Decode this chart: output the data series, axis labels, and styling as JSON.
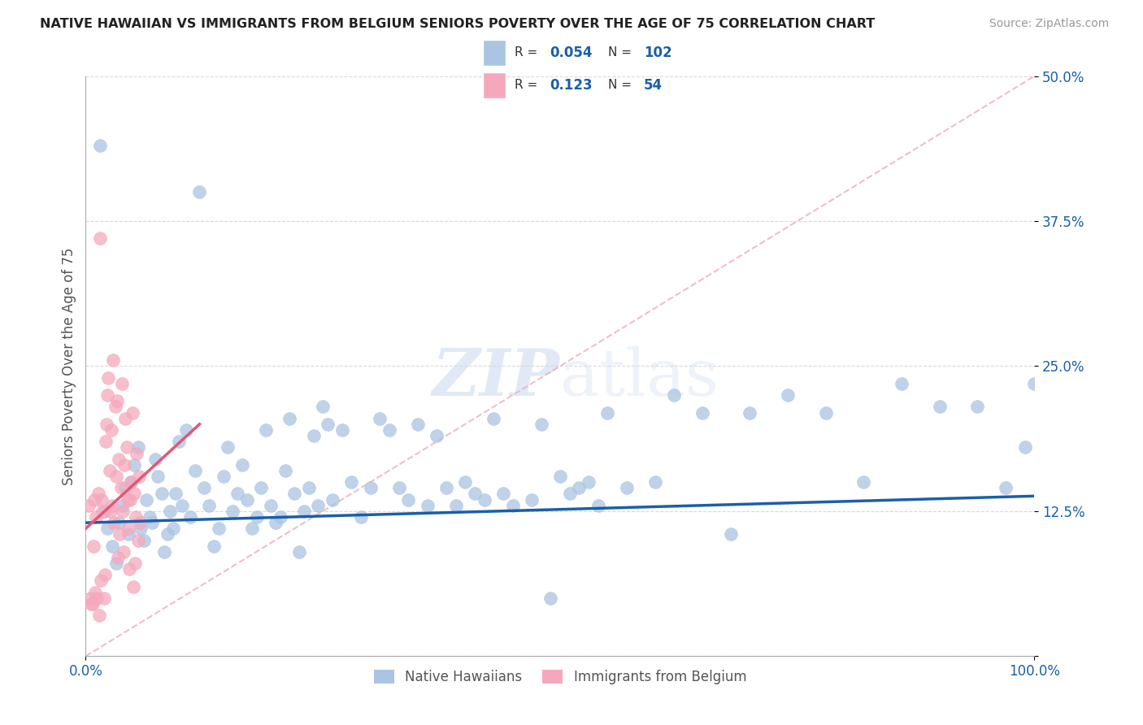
{
  "title": "NATIVE HAWAIIAN VS IMMIGRANTS FROM BELGIUM SENIORS POVERTY OVER THE AGE OF 75 CORRELATION CHART",
  "source": "Source: ZipAtlas.com",
  "ylabel": "Seniors Poverty Over the Age of 75",
  "legend_label1": "Native Hawaiians",
  "legend_label2": "Immigrants from Belgium",
  "r1": 0.054,
  "n1": 102,
  "r2": 0.123,
  "n2": 54,
  "color1": "#aac4e2",
  "color2": "#f5a8bc",
  "trendline1_color": "#1a5fa8",
  "trendline2_color": "#e05878",
  "ref_line_color": "#cccccc",
  "watermark": "ZIPatlas",
  "xlim": [
    0,
    100
  ],
  "ylim": [
    0,
    50
  ],
  "ytick_vals": [
    0,
    12.5,
    25.0,
    37.5,
    50.0
  ],
  "ytick_labels": [
    "",
    "12.5%",
    "25.0%",
    "37.5%",
    "50.0%"
  ],
  "xtick_vals": [
    0,
    100
  ],
  "xtick_labels": [
    "0.0%",
    "100.0%"
  ],
  "title_fontsize": 12,
  "axis_tick_fontsize": 12,
  "native_hawaiian_x": [
    1.5,
    2.0,
    2.3,
    2.8,
    3.2,
    3.5,
    3.9,
    4.2,
    4.5,
    4.8,
    5.1,
    5.5,
    5.8,
    6.1,
    6.4,
    6.7,
    7.0,
    7.3,
    7.6,
    8.0,
    8.3,
    8.6,
    8.9,
    9.2,
    9.5,
    9.8,
    10.2,
    10.6,
    11.0,
    11.5,
    12.0,
    12.5,
    13.0,
    13.5,
    14.0,
    14.5,
    15.0,
    15.5,
    16.0,
    16.5,
    17.0,
    17.5,
    18.0,
    18.5,
    19.0,
    19.5,
    20.0,
    20.5,
    21.0,
    21.5,
    22.0,
    22.5,
    23.0,
    23.5,
    24.0,
    24.5,
    25.0,
    25.5,
    26.0,
    27.0,
    28.0,
    29.0,
    30.0,
    31.0,
    32.0,
    33.0,
    34.0,
    35.0,
    36.0,
    37.0,
    38.0,
    39.0,
    40.0,
    41.0,
    42.0,
    43.0,
    44.0,
    45.0,
    47.0,
    48.0,
    49.0,
    50.0,
    51.0,
    52.0,
    53.0,
    54.0,
    55.0,
    57.0,
    60.0,
    62.0,
    65.0,
    68.0,
    70.0,
    74.0,
    78.0,
    82.0,
    86.0,
    90.0,
    94.0,
    97.0,
    99.0,
    100.0
  ],
  "native_hawaiian_y": [
    44.0,
    12.5,
    11.0,
    9.5,
    8.0,
    11.5,
    13.0,
    14.5,
    10.5,
    15.0,
    16.5,
    18.0,
    11.0,
    10.0,
    13.5,
    12.0,
    11.5,
    17.0,
    15.5,
    14.0,
    9.0,
    10.5,
    12.5,
    11.0,
    14.0,
    18.5,
    13.0,
    19.5,
    12.0,
    16.0,
    40.0,
    14.5,
    13.0,
    9.5,
    11.0,
    15.5,
    18.0,
    12.5,
    14.0,
    16.5,
    13.5,
    11.0,
    12.0,
    14.5,
    19.5,
    13.0,
    11.5,
    12.0,
    16.0,
    20.5,
    14.0,
    9.0,
    12.5,
    14.5,
    19.0,
    13.0,
    21.5,
    20.0,
    13.5,
    19.5,
    15.0,
    12.0,
    14.5,
    20.5,
    19.5,
    14.5,
    13.5,
    20.0,
    13.0,
    19.0,
    14.5,
    13.0,
    15.0,
    14.0,
    13.5,
    20.5,
    14.0,
    13.0,
    13.5,
    20.0,
    5.0,
    15.5,
    14.0,
    14.5,
    15.0,
    13.0,
    21.0,
    14.5,
    15.0,
    22.5,
    21.0,
    10.5,
    21.0,
    22.5,
    21.0,
    15.0,
    23.5,
    21.5,
    21.5,
    14.5,
    18.0,
    23.5
  ],
  "belgium_x": [
    0.3,
    0.5,
    0.6,
    0.7,
    0.8,
    0.9,
    1.0,
    1.1,
    1.2,
    1.3,
    1.4,
    1.5,
    1.6,
    1.7,
    1.8,
    1.9,
    2.0,
    2.1,
    2.2,
    2.3,
    2.4,
    2.5,
    2.6,
    2.7,
    2.8,
    2.9,
    3.0,
    3.1,
    3.2,
    3.3,
    3.4,
    3.5,
    3.6,
    3.7,
    3.8,
    3.9,
    4.0,
    4.1,
    4.2,
    4.3,
    4.4,
    4.5,
    4.6,
    4.7,
    4.8,
    4.9,
    5.0,
    5.1,
    5.2,
    5.3,
    5.4,
    5.5,
    5.6,
    5.7
  ],
  "belgium_y": [
    13.0,
    5.0,
    4.5,
    4.5,
    9.5,
    13.5,
    5.5,
    12.0,
    5.0,
    14.0,
    3.5,
    36.0,
    6.5,
    13.5,
    12.5,
    5.0,
    7.0,
    18.5,
    20.0,
    22.5,
    24.0,
    16.0,
    12.5,
    19.5,
    13.0,
    25.5,
    11.5,
    21.5,
    15.5,
    22.0,
    8.5,
    17.0,
    10.5,
    14.5,
    23.5,
    12.5,
    9.0,
    16.5,
    20.5,
    18.0,
    13.5,
    11.0,
    7.5,
    13.5,
    15.0,
    21.0,
    6.0,
    14.0,
    8.0,
    12.0,
    17.5,
    10.0,
    15.5,
    11.5
  ]
}
